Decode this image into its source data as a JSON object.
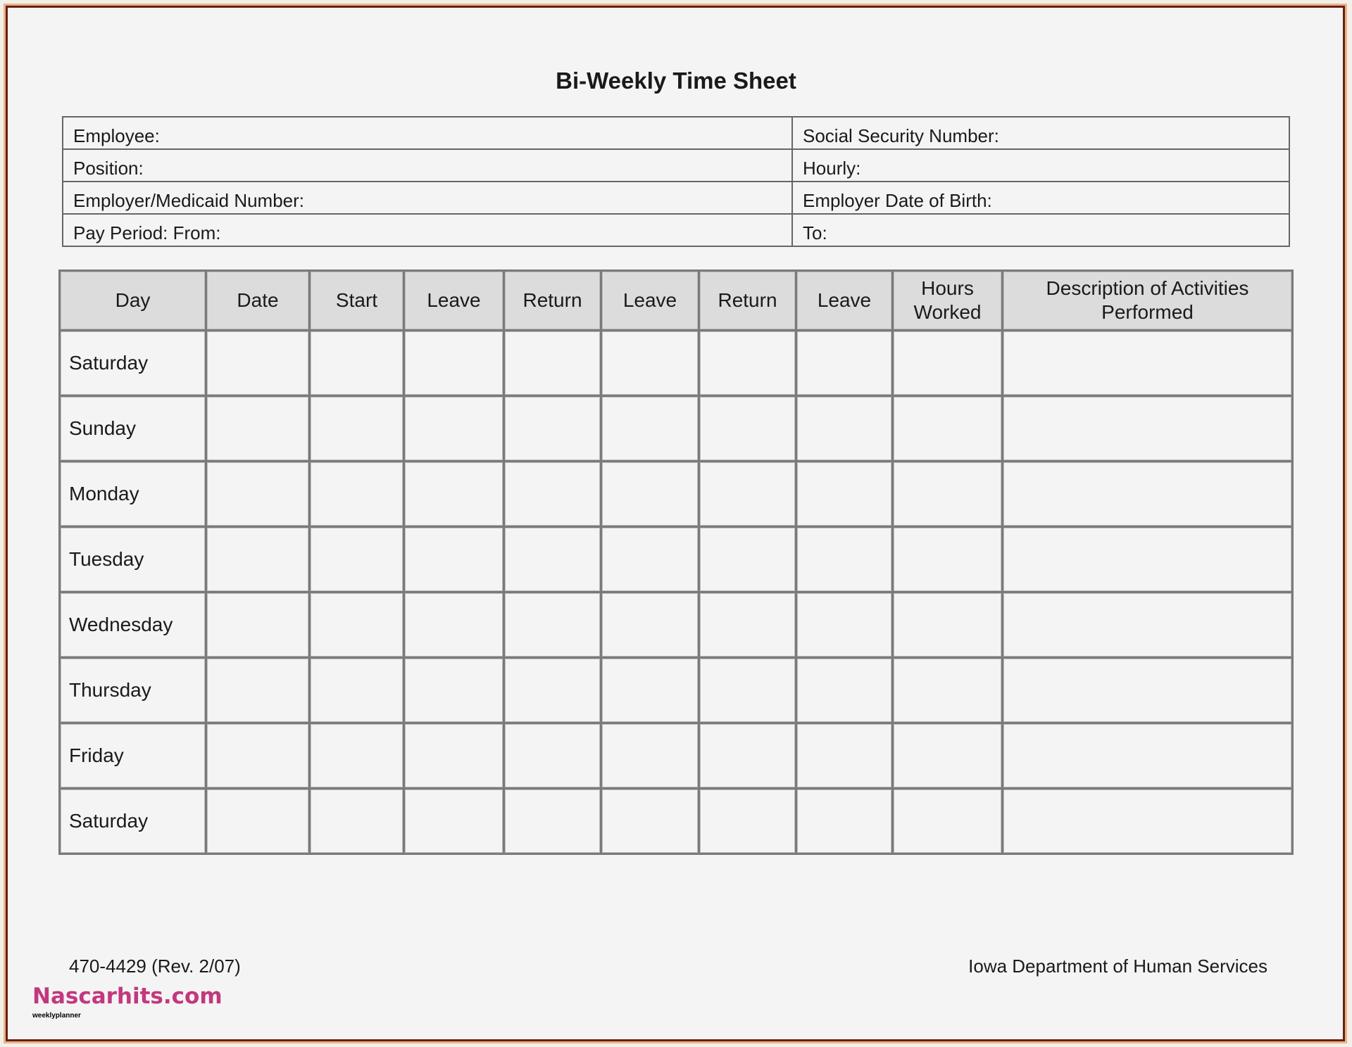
{
  "title": "Bi-Weekly Time Sheet",
  "info": {
    "employee": "Employee:",
    "ssn": "Social Security Number:",
    "position": "Position:",
    "hourly": "Hourly:",
    "employer_number": "Employer/Medicaid Number:",
    "employer_dob": "Employer Date of Birth:",
    "pay_period_from": "Pay Period:  From:",
    "to": "To:"
  },
  "columns": [
    "Day",
    "Date",
    "Start",
    "Leave",
    "Return",
    "Leave",
    "Return",
    "Leave",
    "Hours Worked",
    "Description of Activities Performed"
  ],
  "days": [
    "Saturday",
    "Sunday",
    "Monday",
    "Tuesday",
    "Wednesday",
    "Thursday",
    "Friday",
    "Saturday"
  ],
  "footer": {
    "form_number": "470-4429  (Rev. 2/07)",
    "agency": "Iowa Department of Human Services"
  },
  "watermark": {
    "site": "Nascarhits.com",
    "tag": "weeklyplanner"
  }
}
